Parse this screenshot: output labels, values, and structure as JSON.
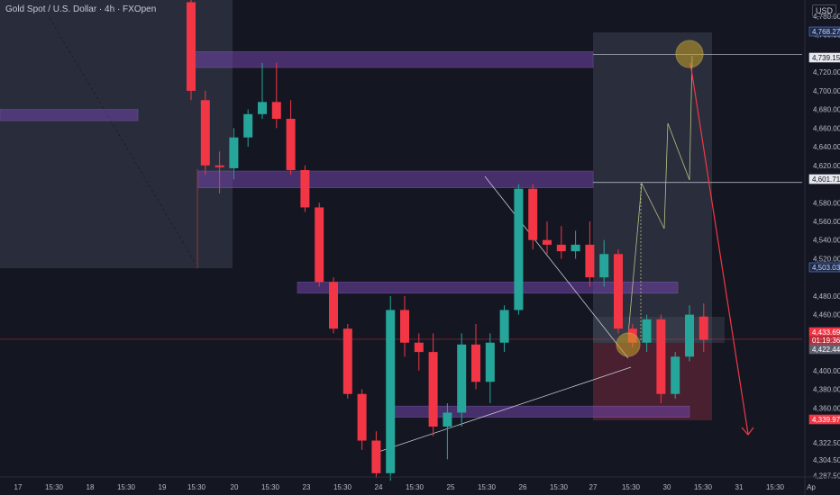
{
  "header": {
    "symbol_title": "Gold Spot / U.S. Dollar · 4h · FXOpen",
    "currency": "USD"
  },
  "chart_data": {
    "type": "candlestick",
    "y_ticks": [
      "4,780.00",
      "4,760.00",
      "4,720.00",
      "4,700.00",
      "4,680.00",
      "4,660.00",
      "4,640.00",
      "4,620.00",
      "4,580.00",
      "4,560.00",
      "4,540.00",
      "4,520.00",
      "4,480.00",
      "4,460.00",
      "4,440.00",
      "4,400.00",
      "4,380.00",
      "4,360.00",
      "4,322.50",
      "4,304.50",
      "4,287.50"
    ],
    "x_ticks": [
      "17",
      "15:30",
      "18",
      "15:30",
      "19",
      "15:30",
      "20",
      "15:30",
      "23",
      "15:30",
      "24",
      "15:30",
      "25",
      "15:30",
      "26",
      "15:30",
      "27",
      "15:30",
      "30",
      "15:30",
      "31",
      "15:30",
      "Ap"
    ],
    "price_tags": [
      {
        "text": "4,768.27",
        "value": 4768.27,
        "style": "blue"
      },
      {
        "text": "4,739.15",
        "value": 4739.15,
        "style": "white"
      },
      {
        "text": "4,601.71",
        "value": 4601.71,
        "style": "white"
      },
      {
        "text": "4,503.03",
        "value": 4503.03,
        "style": "blue"
      },
      {
        "text": "4,433.69",
        "value": 4433.69,
        "style": "red"
      },
      {
        "text": "01:19:36",
        "value": 4427.5,
        "style": "red-sub"
      },
      {
        "text": "4,422.44",
        "value": 4422.44,
        "style": "gray"
      },
      {
        "text": "4,339.97",
        "value": 4339.97,
        "style": "red"
      }
    ],
    "candles": [
      {
        "i": 0,
        "o": 4795,
        "h": 4800,
        "l": 4690,
        "c": 4700
      },
      {
        "i": 1,
        "o": 4690,
        "h": 4700,
        "l": 4610,
        "c": 4620
      },
      {
        "i": 2,
        "o": 4620,
        "h": 4635,
        "l": 4590,
        "c": 4618
      },
      {
        "i": 3,
        "o": 4617,
        "h": 4660,
        "l": 4605,
        "c": 4650
      },
      {
        "i": 4,
        "o": 4650,
        "h": 4680,
        "l": 4640,
        "c": 4675
      },
      {
        "i": 5,
        "o": 4675,
        "h": 4730,
        "l": 4670,
        "c": 4688
      },
      {
        "i": 6,
        "o": 4688,
        "h": 4730,
        "l": 4660,
        "c": 4670
      },
      {
        "i": 7,
        "o": 4670,
        "h": 4690,
        "l": 4610,
        "c": 4615
      },
      {
        "i": 8,
        "o": 4615,
        "h": 4620,
        "l": 4570,
        "c": 4575
      },
      {
        "i": 9,
        "o": 4575,
        "h": 4580,
        "l": 4490,
        "c": 4495
      },
      {
        "i": 10,
        "o": 4495,
        "h": 4500,
        "l": 4440,
        "c": 4445
      },
      {
        "i": 11,
        "o": 4445,
        "h": 4450,
        "l": 4370,
        "c": 4375
      },
      {
        "i": 12,
        "o": 4375,
        "h": 4380,
        "l": 4315,
        "c": 4325
      },
      {
        "i": 13,
        "o": 4325,
        "h": 4335,
        "l": 4285,
        "c": 4290
      },
      {
        "i": 14,
        "o": 4290,
        "h": 4480,
        "l": 4282,
        "c": 4465
      },
      {
        "i": 15,
        "o": 4465,
        "h": 4480,
        "l": 4415,
        "c": 4430
      },
      {
        "i": 16,
        "o": 4430,
        "h": 4440,
        "l": 4400,
        "c": 4420
      },
      {
        "i": 17,
        "o": 4420,
        "h": 4440,
        "l": 4330,
        "c": 4340
      },
      {
        "i": 18,
        "o": 4340,
        "h": 4365,
        "l": 4305,
        "c": 4355
      },
      {
        "i": 19,
        "o": 4355,
        "h": 4440,
        "l": 4340,
        "c": 4428
      },
      {
        "i": 20,
        "o": 4428,
        "h": 4450,
        "l": 4380,
        "c": 4388
      },
      {
        "i": 21,
        "o": 4388,
        "h": 4440,
        "l": 4365,
        "c": 4430
      },
      {
        "i": 22,
        "o": 4430,
        "h": 4470,
        "l": 4420,
        "c": 4465
      },
      {
        "i": 23,
        "o": 4465,
        "h": 4600,
        "l": 4460,
        "c": 4595
      },
      {
        "i": 24,
        "o": 4595,
        "h": 4600,
        "l": 4530,
        "c": 4540
      },
      {
        "i": 25,
        "o": 4540,
        "h": 4560,
        "l": 4525,
        "c": 4535
      },
      {
        "i": 26,
        "o": 4535,
        "h": 4555,
        "l": 4520,
        "c": 4528
      },
      {
        "i": 27,
        "o": 4528,
        "h": 4550,
        "l": 4520,
        "c": 4535
      },
      {
        "i": 28,
        "o": 4535,
        "h": 4560,
        "l": 4490,
        "c": 4500
      },
      {
        "i": 29,
        "o": 4500,
        "h": 4540,
        "l": 4490,
        "c": 4525
      },
      {
        "i": 30,
        "o": 4525,
        "h": 4530,
        "l": 4440,
        "c": 4445
      },
      {
        "i": 31,
        "o": 4445,
        "h": 4450,
        "l": 4425,
        "c": 4430
      },
      {
        "i": 32,
        "o": 4430,
        "h": 4460,
        "l": 4420,
        "c": 4455
      },
      {
        "i": 33,
        "o": 4455,
        "h": 4460,
        "l": 4365,
        "c": 4375
      },
      {
        "i": 34,
        "o": 4375,
        "h": 4420,
        "l": 4370,
        "c": 4415
      },
      {
        "i": 35,
        "o": 4415,
        "h": 4470,
        "l": 4410,
        "c": 4460
      },
      {
        "i": 36,
        "o": 4458,
        "h": 4472,
        "l": 4420,
        "c": 4433
      }
    ],
    "zones": [
      {
        "name": "supply-zone-top",
        "y_hi": 4742,
        "y_lo": 4725,
        "color": "#6f43a7"
      },
      {
        "name": "zone-left",
        "y_hi": 4680,
        "y_lo": 4668,
        "color": "#6f43a7"
      },
      {
        "name": "zone-mid-upper",
        "y_hi": 4614,
        "y_lo": 4596,
        "color": "#6f43a7"
      },
      {
        "name": "zone-mid",
        "y_hi": 4495,
        "y_lo": 4483,
        "color": "#6f43a7"
      },
      {
        "name": "demand-zone-bottom",
        "y_hi": 4362,
        "y_lo": 4350,
        "color": "#6f43a7"
      }
    ],
    "bullish_color": "#26a69a",
    "bearish_color": "#f23645",
    "annotations": {
      "target_price": 4739.15,
      "stop_zone_low": 4339.97
    }
  }
}
